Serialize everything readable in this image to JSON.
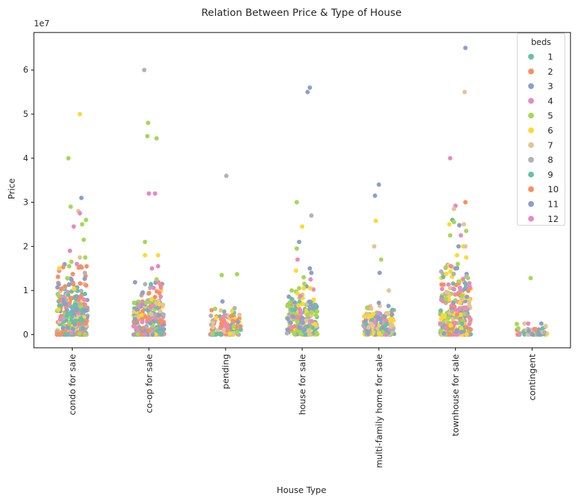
{
  "chart_data": {
    "type": "scatter",
    "title": "Relation Between Price & Type of House",
    "xlabel": "House Type",
    "ylabel": "Price",
    "y_offset_label": "1e7",
    "y_unit_multiplier": 10000000,
    "ylim": [
      -3,
      68.5
    ],
    "yticks": [
      0,
      1,
      2,
      3,
      4,
      5,
      6
    ],
    "categories": [
      "condo for sale",
      "co-op for sale",
      "pending",
      "house for sale",
      "multi-family home for sale",
      "townhouse for sale",
      "contingent"
    ],
    "legend": {
      "title": "beds",
      "position": "top-right",
      "entries": [
        {
          "label": "1",
          "color": "#66c2a5"
        },
        {
          "label": "2",
          "color": "#fc8d62"
        },
        {
          "label": "3",
          "color": "#8da0cb"
        },
        {
          "label": "4",
          "color": "#e78ac3"
        },
        {
          "label": "5",
          "color": "#a6d854"
        },
        {
          "label": "6",
          "color": "#ffd92f"
        },
        {
          "label": "7",
          "color": "#e5c494"
        },
        {
          "label": "8",
          "color": "#b3b3b3"
        },
        {
          "label": "9",
          "color": "#66c2a5"
        },
        {
          "label": "10",
          "color": "#fc8d62"
        },
        {
          "label": "11",
          "color": "#8da0cb"
        },
        {
          "label": "12",
          "color": "#e78ac3"
        }
      ]
    },
    "outliers": [
      {
        "category": "condo for sale",
        "beds": "6",
        "price": 5.0,
        "jitter": 0.1
      },
      {
        "category": "condo for sale",
        "beds": "5",
        "price": 4.0,
        "jitter": -0.05
      },
      {
        "category": "condo for sale",
        "beds": "3",
        "price": 3.1,
        "jitter": 0.12
      },
      {
        "category": "condo for sale",
        "beds": "5",
        "price": 2.9,
        "jitter": -0.02
      },
      {
        "category": "condo for sale",
        "beds": "7",
        "price": 2.8,
        "jitter": 0.08
      },
      {
        "category": "condo for sale",
        "beds": "4",
        "price": 2.75,
        "jitter": 0.1
      },
      {
        "category": "condo for sale",
        "beds": "5",
        "price": 2.6,
        "jitter": 0.18
      },
      {
        "category": "condo for sale",
        "beds": "5",
        "price": 2.5,
        "jitter": 0.13
      },
      {
        "category": "condo for sale",
        "beds": "4",
        "price": 2.45,
        "jitter": 0.02
      },
      {
        "category": "condo for sale",
        "beds": "5",
        "price": 2.15,
        "jitter": 0.15
      },
      {
        "category": "condo for sale",
        "beds": "4",
        "price": 1.9,
        "jitter": -0.03
      },
      {
        "category": "condo for sale",
        "beds": "5",
        "price": 1.75,
        "jitter": 0.17
      },
      {
        "category": "condo for sale",
        "beds": "7",
        "price": 1.75,
        "jitter": 0.1
      },
      {
        "category": "condo for sale",
        "beds": "5",
        "price": 1.65,
        "jitter": -0.01
      },
      {
        "category": "condo for sale",
        "beds": "4",
        "price": 1.6,
        "jitter": 0.06
      },
      {
        "category": "condo for sale",
        "beds": "5",
        "price": 1.55,
        "jitter": -0.04
      },
      {
        "category": "co-op for sale",
        "beds": "8",
        "price": 6.0,
        "jitter": -0.06
      },
      {
        "category": "co-op for sale",
        "beds": "5",
        "price": 4.8,
        "jitter": -0.01
      },
      {
        "category": "co-op for sale",
        "beds": "5",
        "price": 4.5,
        "jitter": -0.02
      },
      {
        "category": "co-op for sale",
        "beds": "5",
        "price": 4.45,
        "jitter": 0.1
      },
      {
        "category": "co-op for sale",
        "beds": "4",
        "price": 3.2,
        "jitter": 0.0
      },
      {
        "category": "co-op for sale",
        "beds": "4",
        "price": 3.2,
        "jitter": 0.08
      },
      {
        "category": "co-op for sale",
        "beds": "5",
        "price": 2.1,
        "jitter": -0.05
      },
      {
        "category": "co-op for sale",
        "beds": "6",
        "price": 1.8,
        "jitter": -0.05
      },
      {
        "category": "co-op for sale",
        "beds": "6",
        "price": 1.8,
        "jitter": 0.12
      },
      {
        "category": "co-op for sale",
        "beds": "4",
        "price": 1.55,
        "jitter": 0.12
      },
      {
        "category": "co-op for sale",
        "beds": "4",
        "price": 1.5,
        "jitter": 0.04
      },
      {
        "category": "co-op for sale",
        "beds": "5",
        "price": 1.25,
        "jitter": 0.1
      },
      {
        "category": "pending",
        "beds": "8",
        "price": 3.6,
        "jitter": 0.01
      },
      {
        "category": "pending",
        "beds": "5",
        "price": 1.37,
        "jitter": 0.15
      },
      {
        "category": "pending",
        "beds": "5",
        "price": 1.35,
        "jitter": -0.05
      },
      {
        "category": "pending",
        "beds": "3",
        "price": 0.75,
        "jitter": -0.04
      },
      {
        "category": "pending",
        "beds": "8",
        "price": 0.6,
        "jitter": 0.12
      },
      {
        "category": "house for sale",
        "beds": "3",
        "price": 5.6,
        "jitter": 0.1
      },
      {
        "category": "house for sale",
        "beds": "3",
        "price": 5.5,
        "jitter": 0.07
      },
      {
        "category": "house for sale",
        "beds": "5",
        "price": 3.0,
        "jitter": -0.07
      },
      {
        "category": "house for sale",
        "beds": "8",
        "price": 2.7,
        "jitter": 0.12
      },
      {
        "category": "house for sale",
        "beds": "6",
        "price": 2.45,
        "jitter": 0.0
      },
      {
        "category": "house for sale",
        "beds": "3",
        "price": 2.1,
        "jitter": -0.04
      },
      {
        "category": "house for sale",
        "beds": "5",
        "price": 1.95,
        "jitter": -0.07
      },
      {
        "category": "house for sale",
        "beds": "4",
        "price": 1.7,
        "jitter": -0.06
      },
      {
        "category": "house for sale",
        "beds": "3",
        "price": 1.5,
        "jitter": 0.1
      },
      {
        "category": "house for sale",
        "beds": "6",
        "price": 1.45,
        "jitter": -0.08
      },
      {
        "category": "house for sale",
        "beds": "3",
        "price": 1.4,
        "jitter": 0.12
      },
      {
        "category": "house for sale",
        "beds": "5",
        "price": 1.3,
        "jitter": 0.02
      },
      {
        "category": "house for sale",
        "beds": "4",
        "price": 1.25,
        "jitter": 0.11
      },
      {
        "category": "house for sale",
        "beds": "5",
        "price": 1.15,
        "jitter": 0.03
      },
      {
        "category": "multi-family home for sale",
        "beds": "3",
        "price": 3.4,
        "jitter": 0.0
      },
      {
        "category": "multi-family home for sale",
        "beds": "3",
        "price": 3.15,
        "jitter": -0.05
      },
      {
        "category": "multi-family home for sale",
        "beds": "6",
        "price": 2.58,
        "jitter": -0.04
      },
      {
        "category": "multi-family home for sale",
        "beds": "7",
        "price": 2.0,
        "jitter": -0.06
      },
      {
        "category": "multi-family home for sale",
        "beds": "5",
        "price": 1.7,
        "jitter": 0.03
      },
      {
        "category": "multi-family home for sale",
        "beds": "3",
        "price": 1.4,
        "jitter": 0.01
      },
      {
        "category": "multi-family home for sale",
        "beds": "7",
        "price": 1.0,
        "jitter": 0.13
      },
      {
        "category": "multi-family home for sale",
        "beds": "3",
        "price": 0.72,
        "jitter": 0.0
      },
      {
        "category": "townhouse for sale",
        "beds": "3",
        "price": 6.5,
        "jitter": 0.13
      },
      {
        "category": "townhouse for sale",
        "beds": "7",
        "price": 5.5,
        "jitter": 0.12
      },
      {
        "category": "townhouse for sale",
        "beds": "4",
        "price": 4.0,
        "jitter": -0.07
      },
      {
        "category": "townhouse for sale",
        "beds": "2",
        "price": 3.0,
        "jitter": 0.13
      },
      {
        "category": "townhouse for sale",
        "beds": "4",
        "price": 2.92,
        "jitter": 0.0
      },
      {
        "category": "townhouse for sale",
        "beds": "7",
        "price": 2.85,
        "jitter": -0.02
      },
      {
        "category": "townhouse for sale",
        "beds": "1",
        "price": 2.6,
        "jitter": -0.04
      },
      {
        "category": "townhouse for sale",
        "beds": "5",
        "price": 2.55,
        "jitter": -0.02
      },
      {
        "category": "townhouse for sale",
        "beds": "6",
        "price": 2.5,
        "jitter": -0.08
      },
      {
        "category": "townhouse for sale",
        "beds": "7",
        "price": 2.5,
        "jitter": 0.11
      },
      {
        "category": "townhouse for sale",
        "beds": "3",
        "price": 2.48,
        "jitter": 0.05
      },
      {
        "category": "townhouse for sale",
        "beds": "5",
        "price": 2.35,
        "jitter": 0.14
      },
      {
        "category": "townhouse for sale",
        "beds": "5",
        "price": 2.25,
        "jitter": -0.07
      },
      {
        "category": "townhouse for sale",
        "beds": "4",
        "price": 2.25,
        "jitter": 0.07
      },
      {
        "category": "townhouse for sale",
        "beds": "3",
        "price": 2.0,
        "jitter": 0.04
      },
      {
        "category": "townhouse for sale",
        "beds": "6",
        "price": 2.0,
        "jitter": 0.1
      },
      {
        "category": "townhouse for sale",
        "beds": "7",
        "price": 2.0,
        "jitter": 0.13
      },
      {
        "category": "townhouse for sale",
        "beds": "6",
        "price": 1.8,
        "jitter": 0.02
      },
      {
        "category": "townhouse for sale",
        "beds": "6",
        "price": 1.75,
        "jitter": 0.14
      },
      {
        "category": "townhouse for sale",
        "beds": "5",
        "price": 1.6,
        "jitter": 0.03
      },
      {
        "category": "townhouse for sale",
        "beds": "4",
        "price": 1.55,
        "jitter": -0.06
      },
      {
        "category": "townhouse for sale",
        "beds": "3",
        "price": 1.5,
        "jitter": 0.0
      },
      {
        "category": "contingent",
        "beds": "5",
        "price": 1.28,
        "jitter": -0.02
      },
      {
        "category": "contingent",
        "beds": "7",
        "price": 0.25,
        "jitter": -0.1
      },
      {
        "category": "contingent",
        "beds": "4",
        "price": 0.25,
        "jitter": -0.05
      },
      {
        "category": "contingent",
        "beds": "3",
        "price": 0.25,
        "jitter": 0.12
      }
    ],
    "dense_clusters": [
      {
        "category": "condo for sale",
        "n": 340,
        "dense_max": 1.0,
        "spread_max": 1.6,
        "palette": [
          "1",
          "2",
          "3",
          "4",
          "5",
          "6",
          "7",
          "8",
          "9",
          "10",
          "11",
          "12",
          "3",
          "3",
          "2",
          "1"
        ]
      },
      {
        "category": "co-op for sale",
        "n": 300,
        "dense_max": 0.8,
        "spread_max": 1.2,
        "palette": [
          "1",
          "2",
          "3",
          "4",
          "5",
          "6",
          "7",
          "8",
          "3",
          "3",
          "2",
          "1",
          "4"
        ]
      },
      {
        "category": "pending",
        "n": 130,
        "dense_max": 0.45,
        "spread_max": 0.6,
        "palette": [
          "1",
          "2",
          "3",
          "4",
          "5",
          "6",
          "7",
          "8",
          "1",
          "2"
        ]
      },
      {
        "category": "house for sale",
        "n": 230,
        "dense_max": 0.75,
        "spread_max": 1.1,
        "palette": [
          "1",
          "2",
          "3",
          "4",
          "5",
          "6",
          "7",
          "8",
          "5",
          "5",
          "3"
        ]
      },
      {
        "category": "multi-family home for sale",
        "n": 200,
        "dense_max": 0.5,
        "spread_max": 0.65,
        "palette": [
          "1",
          "2",
          "3",
          "4",
          "5",
          "6",
          "7",
          "8",
          "6",
          "7",
          "3"
        ]
      },
      {
        "category": "townhouse for sale",
        "n": 300,
        "dense_max": 1.2,
        "spread_max": 1.6,
        "palette": [
          "1",
          "2",
          "3",
          "4",
          "5",
          "6",
          "7",
          "8",
          "5",
          "6",
          "4",
          "2"
        ]
      },
      {
        "category": "contingent",
        "n": 60,
        "dense_max": 0.15,
        "spread_max": 0.25,
        "palette": [
          "1",
          "2",
          "3",
          "4",
          "5",
          "6",
          "7",
          "8",
          "3"
        ]
      }
    ]
  }
}
